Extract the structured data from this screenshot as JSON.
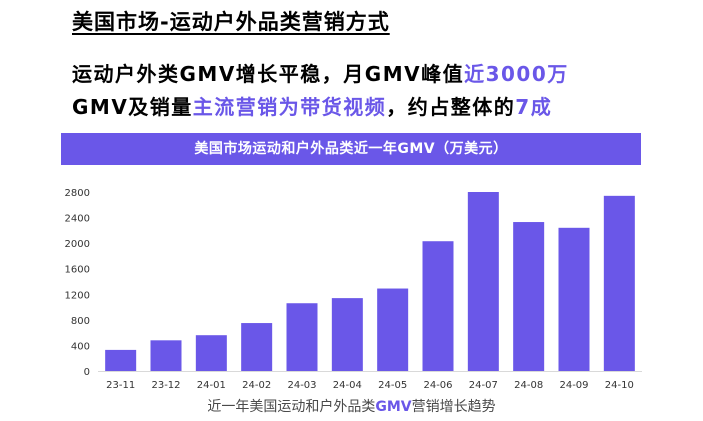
{
  "slide": {
    "title": "美国市场-运动户外品类营销方式",
    "headline_line1_a": "运动户外类GMV增长平稳，月GMV峰值",
    "headline_line1_b": "近3000万",
    "headline_line2_a": "GMV及销量",
    "headline_line2_b": "主流营销为带货视频",
    "headline_line2_c": "，约占整体的",
    "headline_line2_d": "7成"
  },
  "colors": {
    "accent": "#6a57e8",
    "bar": "#6a57e8",
    "text": "#000000",
    "tick_text": "#333333"
  },
  "chart_data": {
    "type": "bar",
    "title": "美国市场运动和户外品类近一年GMV（万美元）",
    "caption_a": "近一年美国运动和户外品类",
    "caption_b": "GMV",
    "caption_c": "营销增长趋势",
    "categories": [
      "23-11",
      "23-12",
      "24-01",
      "24-02",
      "24-03",
      "24-04",
      "24-05",
      "24-06",
      "24-07",
      "24-08",
      "24-09",
      "24-10"
    ],
    "values": [
      330,
      480,
      560,
      750,
      1060,
      1140,
      1290,
      2030,
      2800,
      2330,
      2240,
      2740
    ],
    "ylim": [
      0,
      2800
    ],
    "yticks": [
      "0",
      "400",
      "800",
      "1200",
      "1600",
      "2000",
      "2400",
      "2800"
    ],
    "grid": false,
    "legend": "none"
  }
}
